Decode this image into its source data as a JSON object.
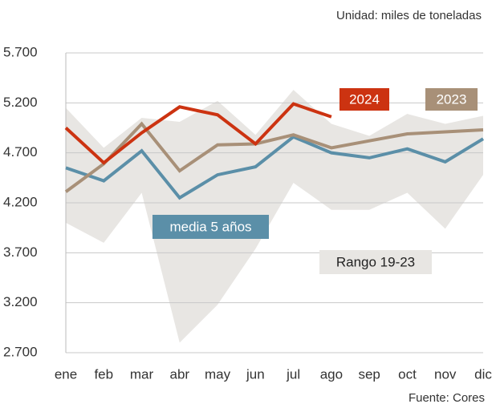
{
  "chart_data": {
    "type": "line",
    "unit_note": "Unidad: miles de toneladas",
    "source": "Fuente: Cores",
    "categories": [
      "ene",
      "feb",
      "mar",
      "abr",
      "may",
      "jun",
      "jul",
      "ago",
      "sep",
      "oct",
      "nov",
      "dic"
    ],
    "range": {
      "name": "Rango 19-23",
      "color": "#e8e6e3",
      "upper": [
        5150,
        4750,
        5050,
        5010,
        5220,
        4880,
        5330,
        4990,
        4870,
        5090,
        4990,
        5070
      ],
      "lower": [
        4000,
        3800,
        4300,
        2800,
        3180,
        3740,
        4400,
        4130,
        4130,
        4300,
        3940,
        4480
      ]
    },
    "series": [
      {
        "name": "media 5 años",
        "color": "#5b8fa8",
        "values": [
          4550,
          4420,
          4720,
          4250,
          4480,
          4560,
          4860,
          4700,
          4650,
          4740,
          4610,
          4840
        ]
      },
      {
        "name": "2023",
        "color": "#a89078",
        "values": [
          4310,
          4590,
          4990,
          4520,
          4780,
          4790,
          4880,
          4750,
          4820,
          4890,
          4910,
          4930
        ]
      },
      {
        "name": "2024",
        "color": "#cc3311",
        "values": [
          4950,
          4600,
          4900,
          5160,
          5080,
          4790,
          5190,
          5060,
          null,
          null,
          null,
          null
        ]
      }
    ],
    "ylim": [
      2700,
      5700
    ],
    "yticks": [
      {
        "value": 2700,
        "label": "2.700"
      },
      {
        "value": 3200,
        "label": "3.200"
      },
      {
        "value": 3700,
        "label": "3.700"
      },
      {
        "value": 4200,
        "label": "4.200"
      },
      {
        "value": 4700,
        "label": "4.700"
      },
      {
        "value": 5200,
        "label": "5.200"
      },
      {
        "value": 5700,
        "label": "5.700"
      }
    ],
    "grid": true
  }
}
